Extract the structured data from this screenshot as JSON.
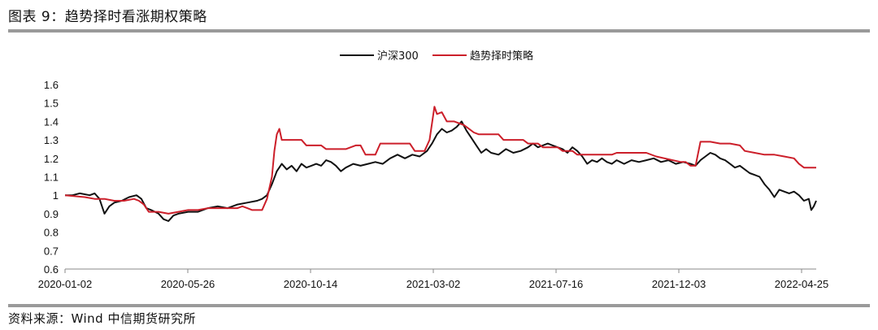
{
  "header": {
    "title": "图表 9：趋势择时看涨期权策略"
  },
  "footer": {
    "source": "资料来源：Wind 中信期货研究所"
  },
  "chart_data": {
    "type": "line",
    "title": "",
    "xlabel": "",
    "ylabel": "",
    "ylim": [
      0.6,
      1.6
    ],
    "y_ticks": [
      0.6,
      0.7,
      0.8,
      0.9,
      1,
      1.1,
      1.2,
      1.3,
      1.4,
      1.5,
      1.6
    ],
    "x_ticks": [
      "2020-01-02",
      "2020-05-26",
      "2020-10-14",
      "2021-03-02",
      "2021-07-16",
      "2021-12-03",
      "2022-04-25"
    ],
    "grid": false,
    "legend_position": "top-center",
    "colors": {
      "hs300": "#111111",
      "strategy": "#cc1f2a"
    },
    "series": [
      {
        "name": "沪深300",
        "values": [
          [
            0,
            1.0
          ],
          [
            3,
            1.0
          ],
          [
            6,
            1.01
          ],
          [
            10,
            1.0
          ],
          [
            12,
            1.01
          ],
          [
            14,
            0.98
          ],
          [
            16,
            0.9
          ],
          [
            18,
            0.94
          ],
          [
            20,
            0.96
          ],
          [
            23,
            0.97
          ],
          [
            26,
            0.99
          ],
          [
            29,
            1.0
          ],
          [
            31,
            0.98
          ],
          [
            33,
            0.93
          ],
          [
            35,
            0.92
          ],
          [
            38,
            0.9
          ],
          [
            40,
            0.87
          ],
          [
            42,
            0.86
          ],
          [
            44,
            0.89
          ],
          [
            46,
            0.9
          ],
          [
            50,
            0.91
          ],
          [
            54,
            0.91
          ],
          [
            58,
            0.93
          ],
          [
            62,
            0.94
          ],
          [
            66,
            0.93
          ],
          [
            70,
            0.95
          ],
          [
            74,
            0.96
          ],
          [
            78,
            0.97
          ],
          [
            80,
            0.98
          ],
          [
            82,
            1.0
          ],
          [
            84,
            1.06
          ],
          [
            86,
            1.13
          ],
          [
            88,
            1.17
          ],
          [
            90,
            1.14
          ],
          [
            92,
            1.16
          ],
          [
            94,
            1.13
          ],
          [
            96,
            1.17
          ],
          [
            98,
            1.15
          ],
          [
            100,
            1.16
          ],
          [
            102,
            1.17
          ],
          [
            104,
            1.16
          ],
          [
            106,
            1.19
          ],
          [
            108,
            1.18
          ],
          [
            110,
            1.16
          ],
          [
            112,
            1.13
          ],
          [
            114,
            1.15
          ],
          [
            117,
            1.17
          ],
          [
            120,
            1.16
          ],
          [
            123,
            1.17
          ],
          [
            126,
            1.18
          ],
          [
            129,
            1.17
          ],
          [
            132,
            1.2
          ],
          [
            135,
            1.22
          ],
          [
            138,
            1.2
          ],
          [
            141,
            1.22
          ],
          [
            144,
            1.21
          ],
          [
            147,
            1.24
          ],
          [
            149,
            1.28
          ],
          [
            151,
            1.33
          ],
          [
            153,
            1.36
          ],
          [
            155,
            1.34
          ],
          [
            157,
            1.35
          ],
          [
            159,
            1.37
          ],
          [
            161,
            1.4
          ],
          [
            163,
            1.35
          ],
          [
            165,
            1.31
          ],
          [
            167,
            1.27
          ],
          [
            169,
            1.23
          ],
          [
            171,
            1.25
          ],
          [
            173,
            1.23
          ],
          [
            176,
            1.22
          ],
          [
            179,
            1.25
          ],
          [
            182,
            1.23
          ],
          [
            185,
            1.24
          ],
          [
            188,
            1.26
          ],
          [
            190,
            1.28
          ],
          [
            192,
            1.26
          ],
          [
            194,
            1.27
          ],
          [
            196,
            1.28
          ],
          [
            198,
            1.27
          ],
          [
            200,
            1.26
          ],
          [
            202,
            1.25
          ],
          [
            204,
            1.23
          ],
          [
            206,
            1.26
          ],
          [
            208,
            1.24
          ],
          [
            210,
            1.21
          ],
          [
            212,
            1.17
          ],
          [
            214,
            1.19
          ],
          [
            216,
            1.18
          ],
          [
            218,
            1.2
          ],
          [
            220,
            1.18
          ],
          [
            222,
            1.17
          ],
          [
            224,
            1.19
          ],
          [
            227,
            1.17
          ],
          [
            230,
            1.19
          ],
          [
            233,
            1.18
          ],
          [
            236,
            1.19
          ],
          [
            239,
            1.2
          ],
          [
            242,
            1.18
          ],
          [
            245,
            1.19
          ],
          [
            248,
            1.17
          ],
          [
            251,
            1.18
          ],
          [
            254,
            1.17
          ],
          [
            256,
            1.16
          ],
          [
            258,
            1.19
          ],
          [
            260,
            1.21
          ],
          [
            262,
            1.23
          ],
          [
            264,
            1.22
          ],
          [
            266,
            1.2
          ],
          [
            268,
            1.19
          ],
          [
            270,
            1.17
          ],
          [
            272,
            1.15
          ],
          [
            274,
            1.16
          ],
          [
            276,
            1.14
          ],
          [
            278,
            1.12
          ],
          [
            280,
            1.11
          ],
          [
            282,
            1.1
          ],
          [
            284,
            1.06
          ],
          [
            286,
            1.03
          ],
          [
            288,
            0.99
          ],
          [
            290,
            1.03
          ],
          [
            292,
            1.02
          ],
          [
            294,
            1.01
          ],
          [
            296,
            1.02
          ],
          [
            298,
            1.0
          ],
          [
            300,
            0.97
          ],
          [
            302,
            0.98
          ],
          [
            303,
            0.92
          ],
          [
            304,
            0.94
          ],
          [
            305,
            0.97
          ]
        ]
      },
      {
        "name": "趋势择时策略",
        "values": [
          [
            0,
            1.0
          ],
          [
            8,
            0.99
          ],
          [
            12,
            0.98
          ],
          [
            16,
            0.98
          ],
          [
            20,
            0.97
          ],
          [
            24,
            0.97
          ],
          [
            28,
            0.98
          ],
          [
            30,
            0.97
          ],
          [
            32,
            0.95
          ],
          [
            34,
            0.91
          ],
          [
            38,
            0.91
          ],
          [
            42,
            0.9
          ],
          [
            46,
            0.91
          ],
          [
            50,
            0.92
          ],
          [
            54,
            0.92
          ],
          [
            58,
            0.93
          ],
          [
            62,
            0.93
          ],
          [
            66,
            0.93
          ],
          [
            70,
            0.93
          ],
          [
            72,
            0.94
          ],
          [
            74,
            0.93
          ],
          [
            76,
            0.92
          ],
          [
            80,
            0.92
          ],
          [
            82,
            0.98
          ],
          [
            84,
            1.1
          ],
          [
            85,
            1.24
          ],
          [
            86,
            1.33
          ],
          [
            87,
            1.36
          ],
          [
            88,
            1.3
          ],
          [
            92,
            1.3
          ],
          [
            96,
            1.3
          ],
          [
            98,
            1.27
          ],
          [
            104,
            1.27
          ],
          [
            106,
            1.25
          ],
          [
            114,
            1.25
          ],
          [
            116,
            1.26
          ],
          [
            118,
            1.27
          ],
          [
            120,
            1.27
          ],
          [
            122,
            1.22
          ],
          [
            126,
            1.22
          ],
          [
            128,
            1.28
          ],
          [
            136,
            1.28
          ],
          [
            140,
            1.28
          ],
          [
            142,
            1.24
          ],
          [
            146,
            1.24
          ],
          [
            148,
            1.3
          ],
          [
            150,
            1.48
          ],
          [
            151,
            1.44
          ],
          [
            153,
            1.45
          ],
          [
            155,
            1.4
          ],
          [
            158,
            1.4
          ],
          [
            162,
            1.38
          ],
          [
            166,
            1.34
          ],
          [
            168,
            1.33
          ],
          [
            176,
            1.33
          ],
          [
            178,
            1.3
          ],
          [
            186,
            1.3
          ],
          [
            188,
            1.28
          ],
          [
            192,
            1.28
          ],
          [
            194,
            1.26
          ],
          [
            200,
            1.26
          ],
          [
            202,
            1.24
          ],
          [
            206,
            1.24
          ],
          [
            208,
            1.22
          ],
          [
            222,
            1.22
          ],
          [
            224,
            1.23
          ],
          [
            236,
            1.23
          ],
          [
            240,
            1.21
          ],
          [
            250,
            1.18
          ],
          [
            252,
            1.18
          ],
          [
            254,
            1.16
          ],
          [
            256,
            1.16
          ],
          [
            258,
            1.29
          ],
          [
            262,
            1.29
          ],
          [
            266,
            1.28
          ],
          [
            270,
            1.28
          ],
          [
            274,
            1.27
          ],
          [
            276,
            1.24
          ],
          [
            280,
            1.23
          ],
          [
            284,
            1.22
          ],
          [
            288,
            1.22
          ],
          [
            292,
            1.21
          ],
          [
            296,
            1.2
          ],
          [
            298,
            1.17
          ],
          [
            300,
            1.15
          ],
          [
            305,
            1.15
          ]
        ]
      }
    ]
  }
}
